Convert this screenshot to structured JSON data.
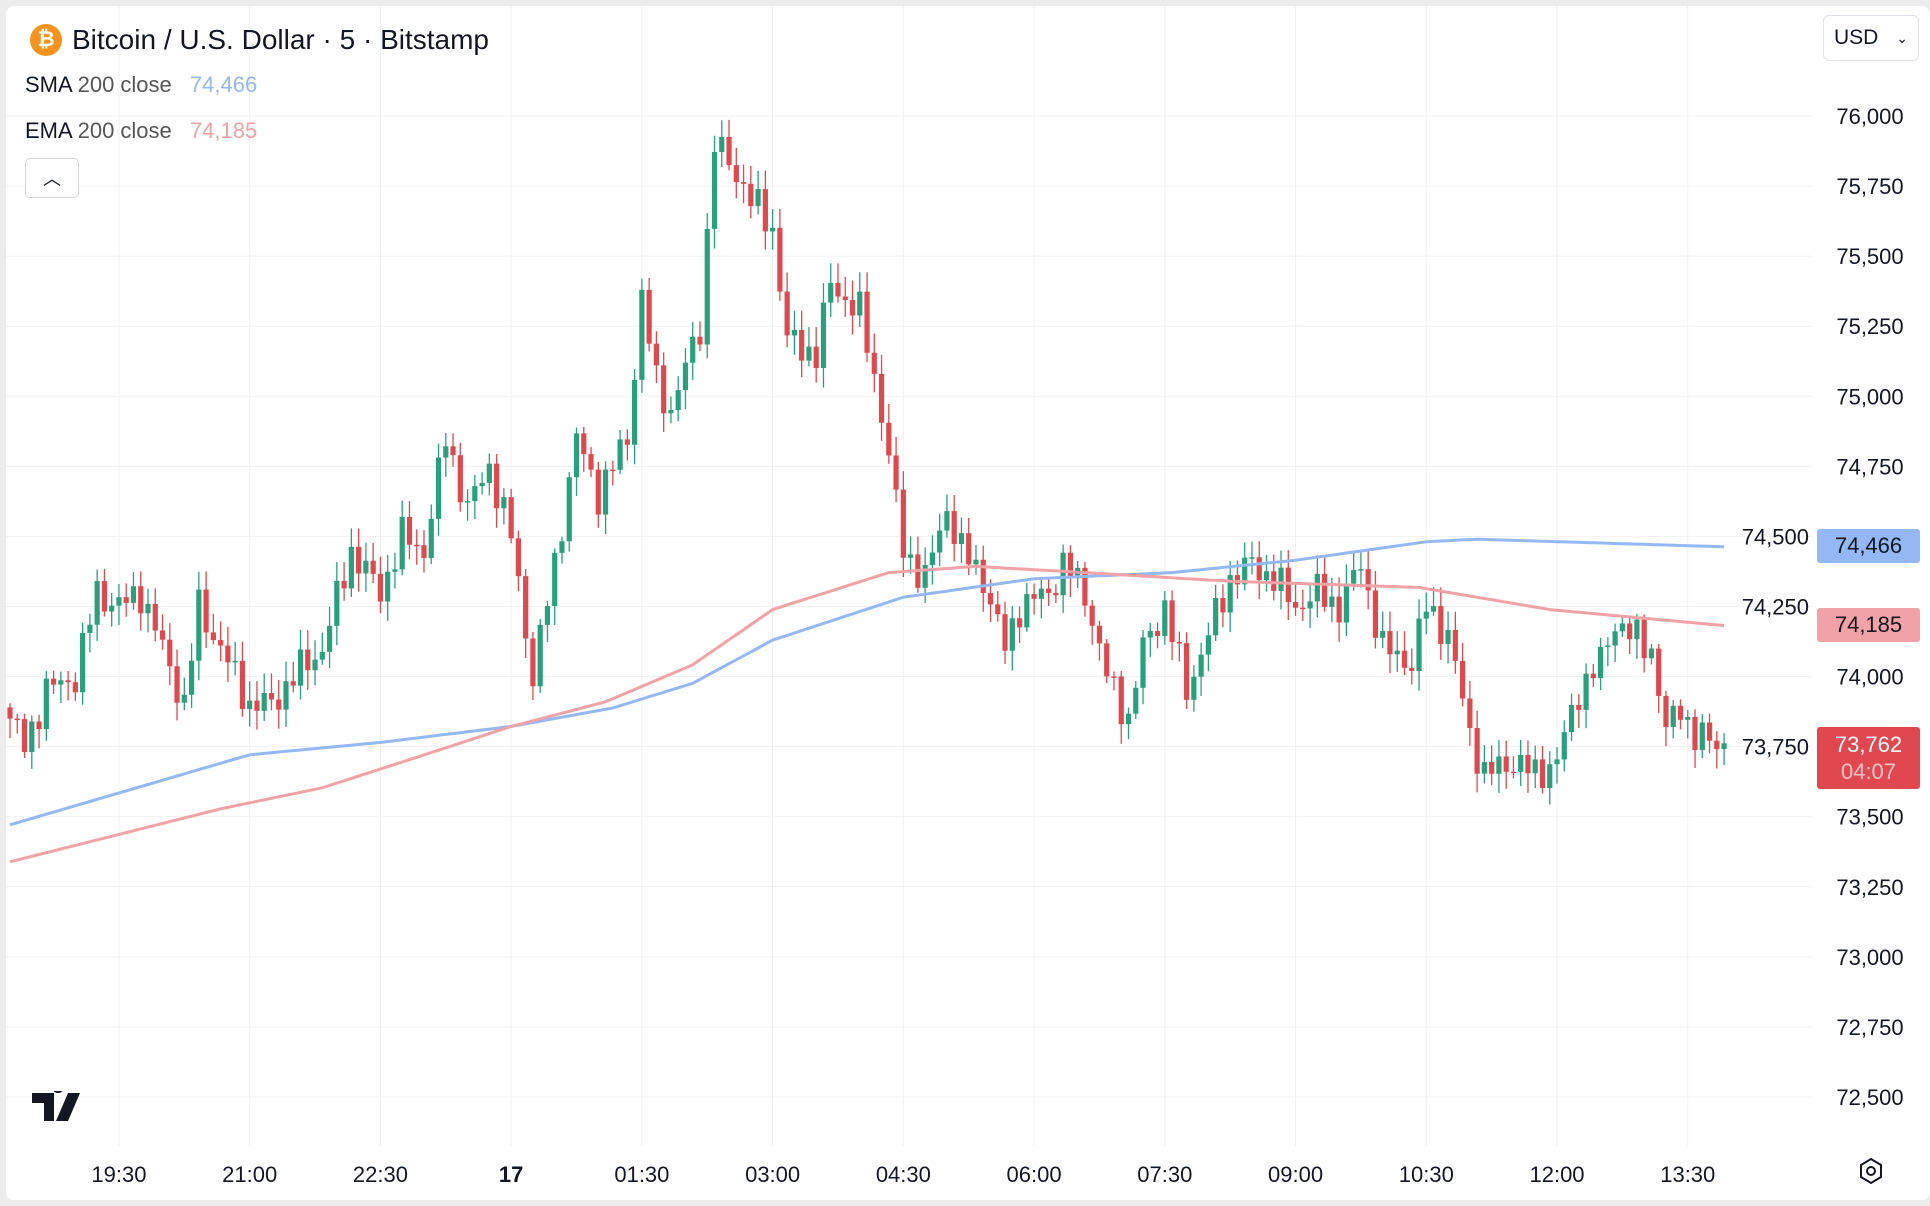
{
  "header": {
    "symbol_icon": "bitcoin-icon",
    "title": "Bitcoin / U.S. Dollar · 5 · Bitstamp",
    "currency": "USD"
  },
  "indicators": [
    {
      "name": "SMA",
      "params": "200 close",
      "value": "74,466",
      "color": "#93b8f3"
    },
    {
      "name": "EMA",
      "params": "200 close",
      "value": "74,185",
      "color": "#f0a2a6"
    }
  ],
  "last_price": {
    "value": "73,762",
    "countdown": "04:07",
    "color": "#e0474f"
  },
  "colors": {
    "up": "#26a17b",
    "down": "#e0474f",
    "sma": "#93b8f3",
    "ema": "#f0a2a6",
    "grid": "#f0f1f3"
  },
  "chart_data": {
    "type": "candlestick",
    "title": "Bitcoin / U.S. Dollar · 5 · Bitstamp",
    "interval_minutes": 5,
    "candle_count": 237,
    "ylim": [
      72400,
      76150
    ],
    "y_ticks": [
      "72,500",
      "72,750",
      "73,000",
      "73,250",
      "73,500",
      "73,750",
      "74,000",
      "74,250",
      "74,500",
      "74,750",
      "75,000",
      "75,250",
      "75,500",
      "75,750",
      "76,000"
    ],
    "y_tick_values": [
      72500,
      72750,
      73000,
      73250,
      73500,
      73750,
      74000,
      74250,
      74500,
      74750,
      75000,
      75250,
      75500,
      75750,
      76000
    ],
    "x_ticks": [
      "19:30",
      "21:00",
      "22:30",
      "17",
      "01:30",
      "03:00",
      "04:30",
      "06:00",
      "07:30",
      "09:00",
      "10:30",
      "12:00",
      "13:30"
    ],
    "x_tick_candle_index": [
      15,
      33,
      51,
      69,
      87,
      105,
      123,
      141,
      159,
      177,
      195,
      213,
      231
    ],
    "close_anchors": [
      [
        0,
        73850
      ],
      [
        2,
        73750
      ],
      [
        5,
        73950
      ],
      [
        9,
        74000
      ],
      [
        12,
        74300
      ],
      [
        15,
        74250
      ],
      [
        18,
        74300
      ],
      [
        21,
        74100
      ],
      [
        24,
        73900
      ],
      [
        26,
        74250
      ],
      [
        29,
        74100
      ],
      [
        33,
        73900
      ],
      [
        36,
        73900
      ],
      [
        39,
        74000
      ],
      [
        43,
        74100
      ],
      [
        47,
        74450
      ],
      [
        51,
        74300
      ],
      [
        54,
        74500
      ],
      [
        57,
        74450
      ],
      [
        60,
        74850
      ],
      [
        63,
        74600
      ],
      [
        66,
        74750
      ],
      [
        69,
        74500
      ],
      [
        72,
        74000
      ],
      [
        75,
        74400
      ],
      [
        78,
        74850
      ],
      [
        81,
        74650
      ],
      [
        85,
        74850
      ],
      [
        87,
        75350
      ],
      [
        89,
        75050
      ],
      [
        91,
        74950
      ],
      [
        95,
        75250
      ],
      [
        97,
        75900
      ],
      [
        100,
        75800
      ],
      [
        102,
        75700
      ],
      [
        105,
        75600
      ],
      [
        107,
        75200
      ],
      [
        111,
        75150
      ],
      [
        113,
        75400
      ],
      [
        117,
        75300
      ],
      [
        120,
        74950
      ],
      [
        123,
        74450
      ],
      [
        126,
        74350
      ],
      [
        129,
        74600
      ],
      [
        131,
        74450
      ],
      [
        134,
        74350
      ],
      [
        137,
        74100
      ],
      [
        139,
        74250
      ],
      [
        143,
        74300
      ],
      [
        145,
        74400
      ],
      [
        148,
        74300
      ],
      [
        151,
        74000
      ],
      [
        154,
        73850
      ],
      [
        156,
        74100
      ],
      [
        159,
        74250
      ],
      [
        162,
        73950
      ],
      [
        165,
        74150
      ],
      [
        168,
        74350
      ],
      [
        171,
        74400
      ],
      [
        174,
        74350
      ],
      [
        177,
        74250
      ],
      [
        180,
        74300
      ],
      [
        183,
        74250
      ],
      [
        186,
        74400
      ],
      [
        189,
        74100
      ],
      [
        193,
        74050
      ],
      [
        195,
        74250
      ],
      [
        198,
        74150
      ],
      [
        201,
        73800
      ],
      [
        203,
        73650
      ],
      [
        207,
        73700
      ],
      [
        210,
        73650
      ],
      [
        213,
        73700
      ],
      [
        216,
        73950
      ],
      [
        219,
        74050
      ],
      [
        221,
        74200
      ],
      [
        223,
        74150
      ],
      [
        226,
        74100
      ],
      [
        228,
        73800
      ],
      [
        230,
        73900
      ],
      [
        232,
        73780
      ],
      [
        236,
        73762
      ]
    ],
    "series": [
      {
        "name": "SMA 200 close",
        "anchors": [
          [
            0,
            73471
          ],
          [
            33,
            73721
          ],
          [
            51,
            73765
          ],
          [
            69,
            73822
          ],
          [
            83,
            73888
          ],
          [
            94,
            73976
          ],
          [
            105,
            74130
          ],
          [
            123,
            74283
          ],
          [
            141,
            74349
          ],
          [
            160,
            74371
          ],
          [
            177,
            74415
          ],
          [
            195,
            74481
          ],
          [
            202,
            74490
          ],
          [
            236,
            74463
          ]
        ]
      },
      {
        "name": "EMA 200 close",
        "anchors": [
          [
            0,
            73339
          ],
          [
            29,
            73528
          ],
          [
            43,
            73603
          ],
          [
            56,
            73712
          ],
          [
            69,
            73822
          ],
          [
            82,
            73910
          ],
          [
            94,
            74042
          ],
          [
            105,
            74239
          ],
          [
            121,
            74371
          ],
          [
            133,
            74393
          ],
          [
            148,
            74371
          ],
          [
            168,
            74340
          ],
          [
            194,
            74318
          ],
          [
            212,
            74239
          ],
          [
            236,
            74182
          ]
        ]
      }
    ]
  }
}
